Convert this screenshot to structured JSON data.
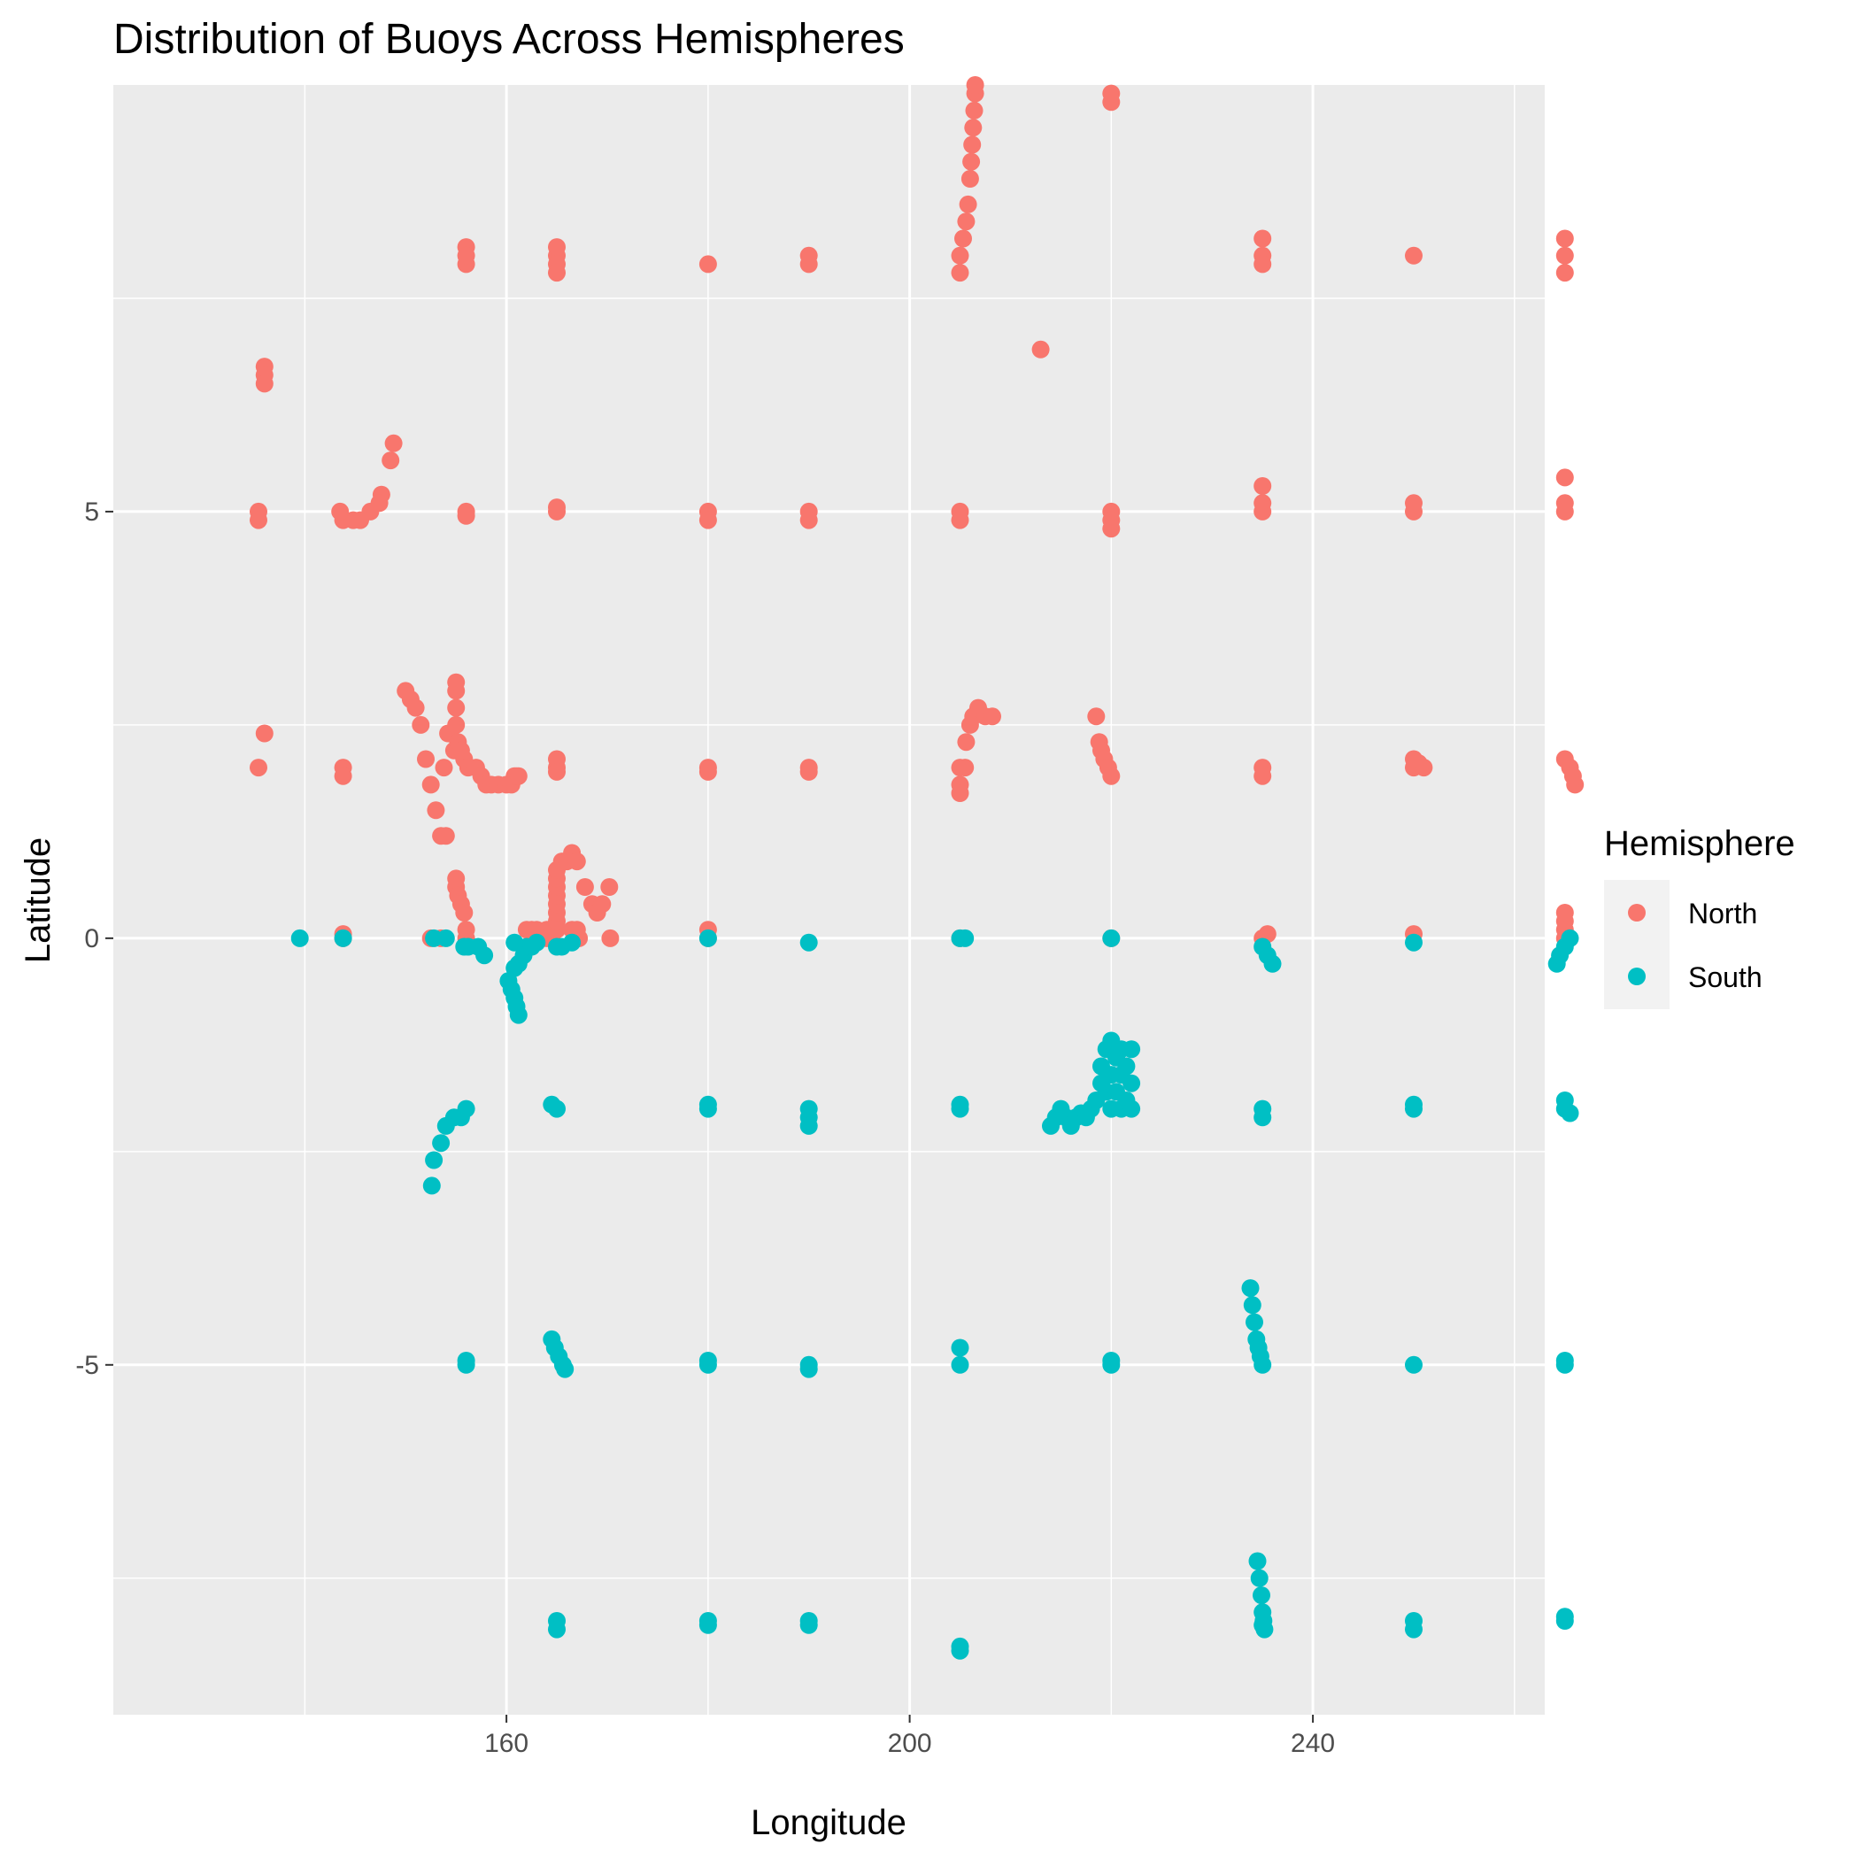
{
  "chart_data": {
    "type": "scatter",
    "title": "Distribution of Buoys Across Hemispheres",
    "xlabel": "Longitude",
    "ylabel": "Latitude",
    "xlim": [
      121,
      263
    ],
    "ylim": [
      -9.1,
      10.0
    ],
    "x_ticks": [
      160,
      200,
      240
    ],
    "x_tick_labels": [
      "160",
      "200",
      "240"
    ],
    "x_minor": [
      140,
      180,
      220,
      260
    ],
    "y_ticks": [
      5,
      0,
      -5
    ],
    "y_tick_labels": [
      "5",
      "0",
      "-5"
    ],
    "y_minor": [
      7.5,
      2.5,
      -2.5,
      -7.5
    ],
    "grid": true,
    "legend": {
      "title": "Hemisphere",
      "placement": "right",
      "entries": [
        "North",
        "South"
      ]
    },
    "series": [
      {
        "name": "North",
        "color": "#F8766D",
        "points": [
          [
            156,
            8.1
          ],
          [
            156,
            7.9
          ],
          [
            156,
            8.0
          ],
          [
            165,
            8.0
          ],
          [
            165,
            7.9
          ],
          [
            165,
            7.8
          ],
          [
            165,
            8.1
          ],
          [
            180,
            7.9
          ],
          [
            190,
            7.9
          ],
          [
            190,
            8.0
          ],
          [
            205,
            7.8
          ],
          [
            205,
            8.0
          ],
          [
            205.3,
            8.2
          ],
          [
            205.6,
            8.4
          ],
          [
            205.8,
            8.6
          ],
          [
            206,
            8.9
          ],
          [
            206.1,
            9.1
          ],
          [
            206.2,
            9.3
          ],
          [
            206.3,
            9.5
          ],
          [
            206.4,
            9.7
          ],
          [
            206.5,
            9.9
          ],
          [
            206.5,
            10.0
          ],
          [
            220,
            9.8
          ],
          [
            220,
            9.9
          ],
          [
            235,
            8.0
          ],
          [
            235,
            8.2
          ],
          [
            235,
            7.9
          ],
          [
            250,
            8.0
          ],
          [
            265,
            8.0
          ],
          [
            265,
            7.8
          ],
          [
            265,
            8.2
          ],
          [
            213,
            6.9
          ],
          [
            136,
            6.7
          ],
          [
            136,
            6.6
          ],
          [
            136,
            6.5
          ],
          [
            148.8,
            5.8
          ],
          [
            148.5,
            5.6
          ],
          [
            147.6,
            5.2
          ],
          [
            147.4,
            5.1
          ],
          [
            146.5,
            5.0
          ],
          [
            145.5,
            4.9
          ],
          [
            144.8,
            4.9
          ],
          [
            143.8,
            4.9
          ],
          [
            143.5,
            5.0
          ],
          [
            135.4,
            5.0
          ],
          [
            135.4,
            4.9
          ],
          [
            156,
            5.0
          ],
          [
            156,
            4.95
          ],
          [
            165,
            5.0
          ],
          [
            165,
            5.05
          ],
          [
            180,
            5.0
          ],
          [
            180,
            4.9
          ],
          [
            190,
            5.0
          ],
          [
            190,
            4.9
          ],
          [
            205,
            5.0
          ],
          [
            205,
            4.9
          ],
          [
            220,
            5.0
          ],
          [
            220,
            4.9
          ],
          [
            220,
            4.8
          ],
          [
            235,
            5.3
          ],
          [
            235,
            5.1
          ],
          [
            235,
            5.0
          ],
          [
            250,
            5.0
          ],
          [
            250,
            5.1
          ],
          [
            265,
            5.4
          ],
          [
            265,
            5.1
          ],
          [
            265,
            5.0
          ],
          [
            136,
            2.4
          ],
          [
            135.4,
            2.0
          ],
          [
            143.8,
            2.0
          ],
          [
            143.8,
            1.9
          ],
          [
            150,
            2.9
          ],
          [
            150.5,
            2.8
          ],
          [
            151,
            2.7
          ],
          [
            151.5,
            2.5
          ],
          [
            152,
            2.1
          ],
          [
            152.5,
            1.8
          ],
          [
            153,
            1.5
          ],
          [
            153.5,
            1.2
          ],
          [
            154,
            1.2
          ],
          [
            153.8,
            2.0
          ],
          [
            154.2,
            2.4
          ],
          [
            154.8,
            2.2
          ],
          [
            155,
            2.5
          ],
          [
            155,
            2.7
          ],
          [
            155,
            2.9
          ],
          [
            155,
            3.0
          ],
          [
            155.2,
            2.3
          ],
          [
            155.5,
            2.2
          ],
          [
            155.8,
            2.1
          ],
          [
            156.2,
            2.0
          ],
          [
            157,
            2.0
          ],
          [
            157.5,
            1.9
          ],
          [
            158,
            1.8
          ],
          [
            158.5,
            1.8
          ],
          [
            159.2,
            1.8
          ],
          [
            160,
            1.8
          ],
          [
            160.5,
            1.8
          ],
          [
            160.8,
            1.9
          ],
          [
            161,
            1.9
          ],
          [
            161.2,
            1.9
          ],
          [
            165,
            2.0
          ],
          [
            165,
            2.1
          ],
          [
            165,
            1.95
          ],
          [
            180,
            2.0
          ],
          [
            180,
            1.95
          ],
          [
            190,
            2.0
          ],
          [
            190,
            1.95
          ],
          [
            205,
            2.0
          ],
          [
            205,
            1.8
          ],
          [
            205,
            1.7
          ],
          [
            205.5,
            2.0
          ],
          [
            205.6,
            2.3
          ],
          [
            206,
            2.5
          ],
          [
            206.3,
            2.6
          ],
          [
            206.8,
            2.7
          ],
          [
            207.5,
            2.6
          ],
          [
            208.2,
            2.6
          ],
          [
            218.5,
            2.6
          ],
          [
            218.8,
            2.3
          ],
          [
            219,
            2.2
          ],
          [
            219.3,
            2.1
          ],
          [
            219.7,
            2.0
          ],
          [
            220,
            1.9
          ],
          [
            235,
            2.0
          ],
          [
            235,
            1.9
          ],
          [
            250,
            2.0
          ],
          [
            250,
            2.1
          ],
          [
            250.5,
            2.05
          ],
          [
            251,
            2.0
          ],
          [
            265,
            2.1
          ],
          [
            265.5,
            2.0
          ],
          [
            265.8,
            1.9
          ],
          [
            266,
            1.8
          ],
          [
            155,
            0.7
          ],
          [
            155,
            0.6
          ],
          [
            155.2,
            0.5
          ],
          [
            155.5,
            0.4
          ],
          [
            155.8,
            0.3
          ],
          [
            156,
            0.1
          ],
          [
            156,
            0.0
          ],
          [
            164,
            0.1
          ],
          [
            164.5,
            0.0
          ],
          [
            165,
            0.1
          ],
          [
            165,
            0.2
          ],
          [
            165,
            0.3
          ],
          [
            165,
            0.4
          ],
          [
            165,
            0.5
          ],
          [
            165,
            0.6
          ],
          [
            165,
            0.7
          ],
          [
            165,
            0.8
          ],
          [
            165.5,
            0.9
          ],
          [
            166,
            0.9
          ],
          [
            166.5,
            1.0
          ],
          [
            167,
            0.9
          ],
          [
            167.8,
            0.6
          ],
          [
            168.5,
            0.4
          ],
          [
            169,
            0.3
          ],
          [
            169.5,
            0.4
          ],
          [
            170.2,
            0.6
          ],
          [
            170.3,
            0.0
          ],
          [
            162,
            0.1
          ],
          [
            162.5,
            0.1
          ],
          [
            163,
            0.1
          ],
          [
            163.5,
            0.05
          ],
          [
            164,
            0.0
          ],
          [
            166.5,
            0.1
          ],
          [
            167,
            0.1
          ],
          [
            167.2,
            0.0
          ],
          [
            143.8,
            0.0
          ],
          [
            143.8,
            0.05
          ],
          [
            152.5,
            0.0
          ],
          [
            153.5,
            0.0
          ],
          [
            180,
            0.0
          ],
          [
            180,
            0.1
          ],
          [
            205,
            0.0
          ],
          [
            220,
            0.0
          ],
          [
            235,
            0.0
          ],
          [
            235.5,
            0.05
          ],
          [
            250,
            0.05
          ],
          [
            265,
            0.0
          ],
          [
            265,
            0.1
          ],
          [
            265,
            0.2
          ],
          [
            265,
            0.3
          ]
        ]
      },
      {
        "name": "South",
        "color": "#00BFC4",
        "points": [
          [
            139.5,
            0.0
          ],
          [
            143.8,
            0.0
          ],
          [
            152.8,
            0.0
          ],
          [
            154,
            0.0
          ],
          [
            155.8,
            -0.1
          ],
          [
            156.2,
            -0.1
          ],
          [
            157.2,
            -0.1
          ],
          [
            157.8,
            -0.2
          ],
          [
            160.2,
            -0.5
          ],
          [
            160.5,
            -0.6
          ],
          [
            160.8,
            -0.7
          ],
          [
            161,
            -0.8
          ],
          [
            161.2,
            -0.9
          ],
          [
            160.8,
            -0.35
          ],
          [
            161.2,
            -0.3
          ],
          [
            161.7,
            -0.2
          ],
          [
            162,
            -0.1
          ],
          [
            162.5,
            -0.1
          ],
          [
            163,
            -0.05
          ],
          [
            160.8,
            -0.05
          ],
          [
            165,
            -0.1
          ],
          [
            165.5,
            -0.1
          ],
          [
            166.5,
            -0.05
          ],
          [
            180,
            0.0
          ],
          [
            190,
            -0.05
          ],
          [
            205,
            0.0
          ],
          [
            205.5,
            0.0
          ],
          [
            220,
            0.0
          ],
          [
            235,
            -0.1
          ],
          [
            235.5,
            -0.2
          ],
          [
            236,
            -0.3
          ],
          [
            250,
            -0.05
          ],
          [
            264.2,
            -0.3
          ],
          [
            264.5,
            -0.2
          ],
          [
            265,
            -0.1
          ],
          [
            265.5,
            0.0
          ],
          [
            156,
            -2.0
          ],
          [
            155.5,
            -2.1
          ],
          [
            154.8,
            -2.1
          ],
          [
            154,
            -2.2
          ],
          [
            153.5,
            -2.4
          ],
          [
            152.8,
            -2.6
          ],
          [
            152.6,
            -2.9
          ],
          [
            165,
            -2.0
          ],
          [
            164.5,
            -1.95
          ],
          [
            180,
            -2.0
          ],
          [
            180,
            -1.95
          ],
          [
            190,
            -2.0
          ],
          [
            190,
            -2.1
          ],
          [
            190,
            -2.2
          ],
          [
            205,
            -2.0
          ],
          [
            205,
            -1.95
          ],
          [
            214,
            -2.2
          ],
          [
            214.5,
            -2.1
          ],
          [
            215,
            -2.0
          ],
          [
            215.5,
            -2.1
          ],
          [
            216,
            -2.2
          ],
          [
            216.5,
            -2.1
          ],
          [
            217,
            -2.05
          ],
          [
            217.5,
            -2.1
          ],
          [
            218,
            -2.0
          ],
          [
            218.5,
            -1.9
          ],
          [
            219,
            -1.7
          ],
          [
            219,
            -1.5
          ],
          [
            219.5,
            -1.3
          ],
          [
            219.5,
            -1.8
          ],
          [
            220,
            -1.2
          ],
          [
            220,
            -1.6
          ],
          [
            220,
            -2.0
          ],
          [
            220.5,
            -1.4
          ],
          [
            220.5,
            -1.8
          ],
          [
            221,
            -1.3
          ],
          [
            221,
            -1.6
          ],
          [
            221,
            -2.0
          ],
          [
            221.5,
            -1.5
          ],
          [
            221.5,
            -1.9
          ],
          [
            222,
            -1.3
          ],
          [
            222,
            -1.7
          ],
          [
            222,
            -2.0
          ],
          [
            235,
            -2.0
          ],
          [
            235,
            -2.1
          ],
          [
            250,
            -2.0
          ],
          [
            250,
            -1.95
          ],
          [
            265,
            -1.9
          ],
          [
            265,
            -2.0
          ],
          [
            265.5,
            -2.05
          ],
          [
            156,
            -5.0
          ],
          [
            156,
            -4.95
          ],
          [
            164.5,
            -4.7
          ],
          [
            164.8,
            -4.8
          ],
          [
            165.2,
            -4.9
          ],
          [
            165.6,
            -5.0
          ],
          [
            165.8,
            -5.05
          ],
          [
            180,
            -5.0
          ],
          [
            180,
            -4.95
          ],
          [
            190,
            -5.0
          ],
          [
            190,
            -5.05
          ],
          [
            205,
            -4.8
          ],
          [
            205,
            -5.0
          ],
          [
            220,
            -5.0
          ],
          [
            220,
            -4.95
          ],
          [
            233.8,
            -4.1
          ],
          [
            234,
            -4.3
          ],
          [
            234.2,
            -4.5
          ],
          [
            234.4,
            -4.7
          ],
          [
            234.6,
            -4.8
          ],
          [
            234.8,
            -4.9
          ],
          [
            235,
            -5.0
          ],
          [
            250,
            -5.0
          ],
          [
            265,
            -5.0
          ],
          [
            265,
            -4.95
          ],
          [
            165,
            -8.0
          ],
          [
            165,
            -8.1
          ],
          [
            180,
            -8.0
          ],
          [
            180,
            -8.05
          ],
          [
            190,
            -8.0
          ],
          [
            190,
            -8.05
          ],
          [
            205,
            -8.3
          ],
          [
            205,
            -8.35
          ],
          [
            234.5,
            -7.3
          ],
          [
            234.7,
            -7.5
          ],
          [
            234.9,
            -7.7
          ],
          [
            235,
            -7.9
          ],
          [
            235.1,
            -8.0
          ],
          [
            235.2,
            -8.1
          ],
          [
            235,
            -8.05
          ],
          [
            250,
            -8.0
          ],
          [
            250,
            -8.1
          ],
          [
            265,
            -8.0
          ],
          [
            265,
            -7.95
          ]
        ]
      }
    ]
  }
}
